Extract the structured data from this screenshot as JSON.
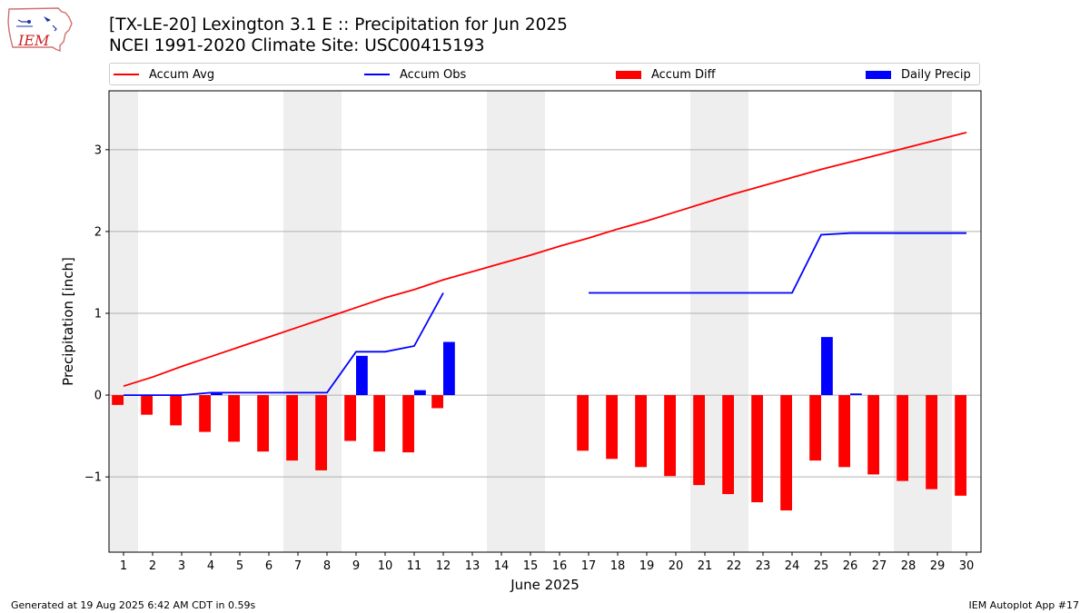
{
  "header": {
    "logo_text": "IEM",
    "title_line1": "[TX-LE-20] Lexington 3.1 E :: Precipitation for Jun 2025",
    "title_line2": "NCEI 1991-2020 Climate Site: USC00415193"
  },
  "legend": [
    {
      "label": "Accum Avg",
      "color": "#ff0000",
      "kind": "line"
    },
    {
      "label": "Accum Obs",
      "color": "#0000ff",
      "kind": "line"
    },
    {
      "label": "Accum Diff",
      "color": "#ff0000",
      "kind": "bar"
    },
    {
      "label": "Daily Precip",
      "color": "#0000ff",
      "kind": "bar"
    }
  ],
  "footer": {
    "left": "Generated at 19 Aug 2025 6:42 AM CDT in 0.59s",
    "right": "IEM Autoplot App #17"
  },
  "chart_data": {
    "type": "bar",
    "xlabel": "June 2025",
    "ylabel": "Precipitation [inch]",
    "xlim": [
      0.5,
      30.5
    ],
    "ylim": [
      -1.92,
      3.72
    ],
    "x": [
      1,
      2,
      3,
      4,
      5,
      6,
      7,
      8,
      9,
      10,
      11,
      12,
      13,
      14,
      15,
      16,
      17,
      18,
      19,
      20,
      21,
      22,
      23,
      24,
      25,
      26,
      27,
      28,
      29,
      30
    ],
    "x_tick_labels": [
      "1",
      "2",
      "3",
      "4",
      "5",
      "6",
      "7",
      "8",
      "9",
      "10",
      "11",
      "12",
      "13",
      "14",
      "15",
      "16",
      "17",
      "18",
      "19",
      "20",
      "21",
      "22",
      "23",
      "24",
      "25",
      "26",
      "27",
      "28",
      "29",
      "30"
    ],
    "y_ticks": [
      -1,
      0,
      1,
      2,
      3
    ],
    "y_tick_labels": [
      "−1",
      "0",
      "1",
      "2",
      "3"
    ],
    "grid": "horizontal",
    "legend_position": "top",
    "weekend_shading": [
      [
        0.5,
        1.5
      ],
      [
        6.5,
        8.5
      ],
      [
        13.5,
        15.5
      ],
      [
        20.5,
        22.5
      ],
      [
        27.5,
        29.5
      ]
    ],
    "weekend_color": "#eeeeee",
    "series": [
      {
        "name": "Accum Avg",
        "type": "line",
        "color": "#ff0000",
        "values": [
          0.11,
          0.22,
          0.35,
          0.47,
          0.59,
          0.71,
          0.83,
          0.95,
          1.07,
          1.19,
          1.29,
          1.41,
          1.51,
          1.61,
          1.71,
          1.82,
          1.92,
          2.03,
          2.13,
          2.24,
          2.35,
          2.46,
          2.56,
          2.66,
          2.76,
          2.85,
          2.94,
          3.03,
          3.12,
          3.21
        ]
      },
      {
        "name": "Accum Obs",
        "type": "line",
        "color": "#0000ff",
        "values": [
          0.0,
          0.0,
          0.0,
          0.03,
          0.03,
          0.03,
          0.03,
          0.03,
          0.53,
          0.53,
          0.6,
          1.25,
          null,
          null,
          null,
          null,
          1.25,
          1.25,
          1.25,
          1.25,
          1.25,
          1.25,
          1.25,
          1.25,
          1.96,
          1.98,
          1.98,
          1.98,
          1.98,
          1.98
        ]
      },
      {
        "name": "Accum Diff",
        "type": "bar",
        "color": "#ff0000",
        "values": [
          -0.12,
          -0.24,
          -0.37,
          -0.45,
          -0.57,
          -0.69,
          -0.8,
          -0.92,
          -0.56,
          -0.69,
          -0.7,
          -0.16,
          null,
          null,
          null,
          null,
          -0.68,
          -0.78,
          -0.88,
          -0.99,
          -1.1,
          -1.21,
          -1.31,
          -1.41,
          -0.8,
          -0.88,
          -0.97,
          -1.05,
          -1.15,
          -1.23
        ]
      },
      {
        "name": "Daily Precip",
        "type": "bar",
        "color": "#0000ff",
        "values": [
          0,
          0,
          0,
          0.03,
          0,
          0,
          0,
          0,
          0.48,
          0,
          0.06,
          0.65,
          null,
          null,
          null,
          null,
          0,
          0,
          0,
          0,
          0,
          0,
          0,
          0,
          0.71,
          0.02,
          0,
          0,
          0,
          0
        ]
      }
    ]
  }
}
